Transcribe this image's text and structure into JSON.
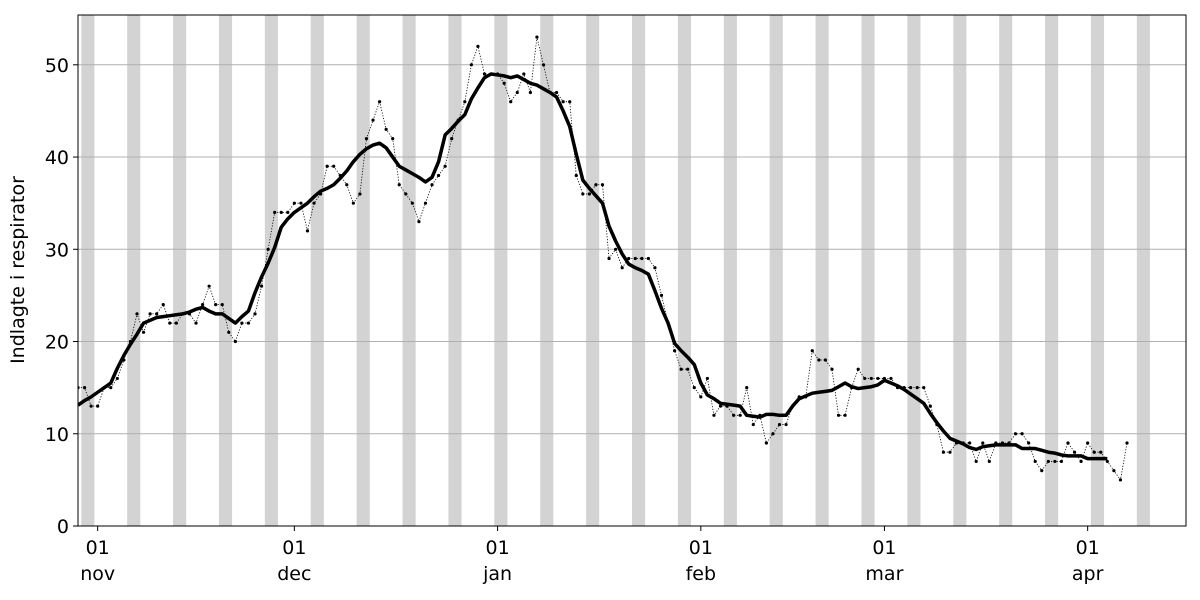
{
  "chart_data": {
    "type": "line",
    "ylabel": "Indlagte i respirator",
    "x": [
      "10-29",
      "10-30",
      "10-31",
      "11-01",
      "11-02",
      "11-03",
      "11-04",
      "11-05",
      "11-06",
      "11-07",
      "11-08",
      "11-09",
      "11-10",
      "11-11",
      "11-12",
      "11-13",
      "11-14",
      "11-15",
      "11-16",
      "11-17",
      "11-18",
      "11-19",
      "11-20",
      "11-21",
      "11-22",
      "11-23",
      "11-24",
      "11-25",
      "11-26",
      "11-27",
      "11-28",
      "11-29",
      "11-30",
      "12-01",
      "12-02",
      "12-03",
      "12-04",
      "12-05",
      "12-06",
      "12-07",
      "12-08",
      "12-09",
      "12-10",
      "12-11",
      "12-12",
      "12-13",
      "12-14",
      "12-15",
      "12-16",
      "12-17",
      "12-18",
      "12-19",
      "12-20",
      "12-21",
      "12-22",
      "12-23",
      "12-24",
      "12-25",
      "12-26",
      "12-27",
      "12-28",
      "12-29",
      "12-30",
      "12-31",
      "01-01",
      "01-02",
      "01-03",
      "01-04",
      "01-05",
      "01-06",
      "01-07",
      "01-08",
      "01-09",
      "01-10",
      "01-11",
      "01-12",
      "01-13",
      "01-14",
      "01-15",
      "01-16",
      "01-17",
      "01-18",
      "01-19",
      "01-20",
      "01-21",
      "01-22",
      "01-23",
      "01-24",
      "01-25",
      "01-26",
      "01-27",
      "01-28",
      "01-29",
      "01-30",
      "01-31",
      "02-01",
      "02-02",
      "02-03",
      "02-04",
      "02-05",
      "02-06",
      "02-07",
      "02-08",
      "02-09",
      "02-10",
      "02-11",
      "02-12",
      "02-13",
      "02-14",
      "02-15",
      "02-16",
      "02-17",
      "02-18",
      "02-19",
      "02-20",
      "02-21",
      "02-22",
      "02-23",
      "02-24",
      "02-25",
      "02-26",
      "02-27",
      "02-28",
      "03-01",
      "03-02",
      "03-03",
      "03-04",
      "03-05",
      "03-06",
      "03-07",
      "03-08",
      "03-09",
      "03-10",
      "03-11",
      "03-12",
      "03-13",
      "03-14",
      "03-15",
      "03-16",
      "03-17",
      "03-18",
      "03-19",
      "03-20",
      "03-21",
      "03-22",
      "03-23",
      "03-24",
      "03-25",
      "03-26",
      "03-27",
      "03-28",
      "03-29",
      "03-30",
      "03-31",
      "04-01",
      "04-02",
      "04-03",
      "04-04",
      "04-05",
      "04-06",
      "04-07"
    ],
    "series": [
      {
        "color": "#000000",
        "linestyle": "dotted",
        "markers": true,
        "values": [
          15,
          15,
          13,
          13,
          15,
          15,
          16,
          18,
          20,
          23,
          21,
          23,
          23,
          24,
          22,
          22,
          23,
          23,
          22,
          24,
          26,
          24,
          24,
          21,
          20,
          22,
          22,
          23,
          26,
          30,
          34,
          34,
          34,
          35,
          35,
          32,
          35,
          36,
          39,
          39,
          38,
          37,
          35,
          36,
          42,
          44,
          46,
          43,
          42,
          37,
          36,
          35,
          33,
          35,
          37,
          38,
          39,
          42,
          44,
          46,
          50,
          52,
          49,
          49,
          49,
          48,
          46,
          47,
          49,
          47,
          53,
          50,
          47,
          47,
          46,
          46,
          38,
          36,
          36,
          37,
          37,
          29,
          30,
          28,
          29,
          29,
          29,
          29,
          28,
          25,
          22,
          19,
          17,
          17,
          15,
          14,
          16,
          12,
          13,
          13,
          12,
          12,
          15,
          11,
          12,
          9,
          10,
          11,
          11,
          13,
          14,
          14,
          19,
          18,
          18,
          17,
          12,
          12,
          15,
          17,
          16,
          16,
          16,
          16,
          16,
          15,
          15,
          15,
          15,
          15,
          13,
          11,
          8,
          8,
          9,
          9,
          9,
          7,
          9,
          7,
          9,
          9,
          9,
          10,
          10,
          9,
          7,
          6,
          7,
          7,
          7,
          9,
          8,
          7,
          9,
          8,
          8,
          7,
          6,
          5,
          9
        ]
      },
      {
        "color": "#000000",
        "linestyle": "solid",
        "linewidth": 3.5,
        "values": [
          13.1,
          13.6,
          14.0,
          14.5,
          15.0,
          15.5,
          17.1,
          18.5,
          19.7,
          20.8,
          22.0,
          22.3,
          22.6,
          22.7,
          22.8,
          22.9,
          23.0,
          23.2,
          23.5,
          23.7,
          23.3,
          23.0,
          23.0,
          22.5,
          22.0,
          22.7,
          23.3,
          25.3,
          27.0,
          28.5,
          30.2,
          32.4,
          33.3,
          34.0,
          34.5,
          35.0,
          35.7,
          36.3,
          36.6,
          37.0,
          37.7,
          38.5,
          39.5,
          40.3,
          40.9,
          41.3,
          41.5,
          41.0,
          40.0,
          39.0,
          38.6,
          38.2,
          37.8,
          37.3,
          37.8,
          39.5,
          42.4,
          43.1,
          43.9,
          44.6,
          46.3,
          47.5,
          48.6,
          49.0,
          48.9,
          48.8,
          48.6,
          48.8,
          48.4,
          48.0,
          47.8,
          47.4,
          47.0,
          46.5,
          45.0,
          43.3,
          40.3,
          37.5,
          36.6,
          35.8,
          35.0,
          32.5,
          30.9,
          29.5,
          28.4,
          28.0,
          27.7,
          27.3,
          25.5,
          23.6,
          22.0,
          19.8,
          19.0,
          18.3,
          17.5,
          15.5,
          14.2,
          13.8,
          13.3,
          13.2,
          13.1,
          13.0,
          12.0,
          11.9,
          11.8,
          12.1,
          12.1,
          12.0,
          12.0,
          13.0,
          13.8,
          14.1,
          14.4,
          14.5,
          14.6,
          14.7,
          15.1,
          15.5,
          15.1,
          14.9,
          15.0,
          15.1,
          15.3,
          15.8,
          15.5,
          15.2,
          14.8,
          14.3,
          13.8,
          13.3,
          12.2,
          11.2,
          10.3,
          9.5,
          9.2,
          8.9,
          8.5,
          8.3,
          8.6,
          8.7,
          8.8,
          8.8,
          8.8,
          8.8,
          8.4,
          8.4,
          8.4,
          8.2,
          8.0,
          7.9,
          7.7,
          7.6,
          7.6,
          7.6,
          7.3,
          7.3,
          7.3,
          7.3,
          null,
          null,
          null
        ]
      }
    ],
    "xlim": [
      "10-29",
      "04-16"
    ],
    "xticks": [
      {
        "value": "11-01",
        "label": "01\nnov"
      },
      {
        "value": "12-01",
        "label": "01\ndec"
      },
      {
        "value": "01-01",
        "label": "01\njan"
      },
      {
        "value": "02-01",
        "label": "01\nfeb"
      },
      {
        "value": "03-01",
        "label": "01\nmar"
      },
      {
        "value": "04-01",
        "label": "01\napr"
      }
    ],
    "ylim": [
      0,
      55.4
    ],
    "yticks": [
      0,
      10,
      20,
      30,
      40,
      50
    ],
    "grid": true,
    "band_color": "#d3d3d3",
    "band_days": 2,
    "bands": [
      "10-30",
      "11-06",
      "11-13",
      "11-20",
      "11-27",
      "12-04",
      "12-11",
      "12-18",
      "12-25",
      "01-01",
      "01-08",
      "01-15",
      "01-22",
      "01-29",
      "02-05",
      "02-12",
      "02-19",
      "02-26",
      "03-05",
      "03-12",
      "03-19",
      "03-26",
      "04-02",
      "04-09"
    ]
  }
}
